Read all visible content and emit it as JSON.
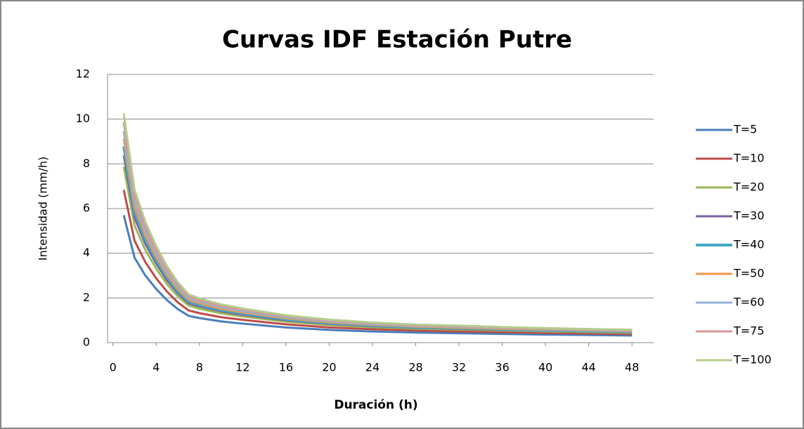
{
  "chart_data": {
    "type": "line",
    "title": "Curvas IDF Estación Putre",
    "x_label": "Duración (h)",
    "y_label": "Intensidad (mm/h)",
    "x": [
      1,
      2,
      3,
      4,
      5,
      6,
      7,
      8,
      10,
      12,
      16,
      20,
      24,
      28,
      32,
      36,
      40,
      44,
      48
    ],
    "xlim": [
      -0.5,
      50
    ],
    "xticks": [
      0,
      4,
      8,
      12,
      16,
      20,
      24,
      28,
      32,
      36,
      40,
      44,
      48
    ],
    "ylim": [
      0,
      12
    ],
    "yticks": [
      0,
      2,
      4,
      6,
      8,
      10,
      12
    ],
    "grid": true,
    "legend": "right",
    "series": [
      {
        "name": "T=5",
        "color": "#4a7ebb",
        "values": [
          5.7,
          3.8,
          3.0,
          2.4,
          1.9,
          1.5,
          1.2,
          1.1,
          0.95,
          0.85,
          0.68,
          0.57,
          0.5,
          0.45,
          0.42,
          0.39,
          0.36,
          0.34,
          0.32
        ]
      },
      {
        "name": "T=10",
        "color": "#be4b48",
        "values": [
          6.84,
          4.56,
          3.6,
          2.88,
          2.28,
          1.8,
          1.44,
          1.32,
          1.14,
          1.02,
          0.82,
          0.68,
          0.6,
          0.54,
          0.5,
          0.47,
          0.43,
          0.41,
          0.38
        ]
      },
      {
        "name": "T=20",
        "color": "#98b954",
        "values": [
          7.87,
          5.24,
          4.14,
          3.31,
          2.62,
          2.07,
          1.66,
          1.52,
          1.31,
          1.17,
          0.94,
          0.79,
          0.69,
          0.62,
          0.58,
          0.54,
          0.5,
          0.47,
          0.44
        ]
      },
      {
        "name": "T=30",
        "color": "#7d60a0",
        "values": [
          8.38,
          5.59,
          4.41,
          3.53,
          2.79,
          2.21,
          1.76,
          1.62,
          1.4,
          1.25,
          1.0,
          0.84,
          0.74,
          0.66,
          0.62,
          0.57,
          0.53,
          0.5,
          0.47
        ]
      },
      {
        "name": "T=40",
        "color": "#46aac5",
        "values": [
          8.78,
          5.85,
          4.62,
          3.7,
          2.93,
          2.31,
          1.85,
          1.69,
          1.46,
          1.31,
          1.05,
          0.88,
          0.77,
          0.69,
          0.65,
          0.6,
          0.55,
          0.52,
          0.49
        ]
      },
      {
        "name": "T=50",
        "color": "#f79646",
        "values": [
          9.12,
          6.08,
          4.8,
          3.84,
          3.04,
          2.4,
          1.92,
          1.76,
          1.52,
          1.36,
          1.09,
          0.91,
          0.8,
          0.72,
          0.67,
          0.62,
          0.58,
          0.54,
          0.51
        ]
      },
      {
        "name": "T=60",
        "color": "#95b3d7",
        "values": [
          9.46,
          6.31,
          4.98,
          3.98,
          3.15,
          2.49,
          1.99,
          1.83,
          1.58,
          1.41,
          1.13,
          0.95,
          0.83,
          0.75,
          0.7,
          0.65,
          0.6,
          0.56,
          0.53
        ]
      },
      {
        "name": "T=75",
        "color": "#d99694",
        "values": [
          9.86,
          6.57,
          5.19,
          4.15,
          3.29,
          2.6,
          2.08,
          1.9,
          1.64,
          1.47,
          1.18,
          0.99,
          0.87,
          0.78,
          0.73,
          0.67,
          0.62,
          0.59,
          0.55
        ]
      },
      {
        "name": "T=100",
        "color": "#b3cd8e",
        "values": [
          10.26,
          6.84,
          5.4,
          4.32,
          3.42,
          2.7,
          2.16,
          1.98,
          1.71,
          1.53,
          1.22,
          1.03,
          0.9,
          0.81,
          0.76,
          0.7,
          0.65,
          0.61,
          0.58
        ]
      }
    ]
  }
}
